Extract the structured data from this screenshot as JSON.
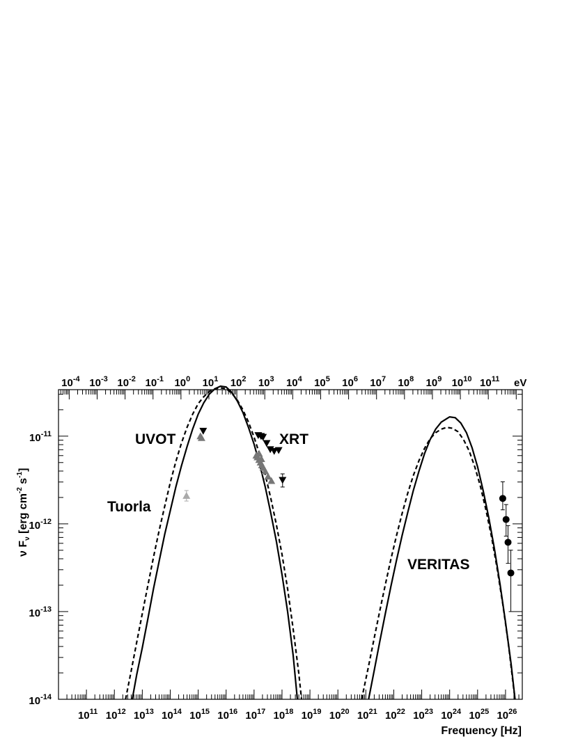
{
  "chart_data": {
    "type": "scatter",
    "xlabel": "Frequency [Hz]",
    "ylabel_parts": {
      "pre": "ν F",
      "sub": "ν",
      "mid": " [erg cm",
      "sup1": "-2",
      "mid2": " s",
      "sup2": "-1",
      "post": "]"
    },
    "x_log_range": [
      10.0,
      26.6
    ],
    "y_log_range": [
      -14,
      -10.47
    ],
    "xscale": "log",
    "yscale": "log",
    "x_tick_labels": [
      {
        "base": "10",
        "exp": "11",
        "v": 11
      },
      {
        "base": "10",
        "exp": "12",
        "v": 12
      },
      {
        "base": "10",
        "exp": "13",
        "v": 13
      },
      {
        "base": "10",
        "exp": "14",
        "v": 14
      },
      {
        "base": "10",
        "exp": "15",
        "v": 15
      },
      {
        "base": "10",
        "exp": "16",
        "v": 16
      },
      {
        "base": "10",
        "exp": "17",
        "v": 17
      },
      {
        "base": "10",
        "exp": "18",
        "v": 18
      },
      {
        "base": "10",
        "exp": "19",
        "v": 19
      },
      {
        "base": "10",
        "exp": "20",
        "v": 20
      },
      {
        "base": "10",
        "exp": "21",
        "v": 21
      },
      {
        "base": "10",
        "exp": "22",
        "v": 22
      },
      {
        "base": "10",
        "exp": "23",
        "v": 23
      },
      {
        "base": "10",
        "exp": "24",
        "v": 24
      },
      {
        "base": "10",
        "exp": "25",
        "v": 25
      },
      {
        "base": "10",
        "exp": "26",
        "v": 26
      }
    ],
    "y_tick_labels": [
      {
        "base": "10",
        "exp": "-14",
        "v": -14
      },
      {
        "base": "10",
        "exp": "-13",
        "v": -13
      },
      {
        "base": "10",
        "exp": "-12",
        "v": -12
      },
      {
        "base": "10",
        "exp": "-11",
        "v": -11
      }
    ],
    "top_axis": {
      "unit": "eV",
      "labels": [
        {
          "base": "10",
          "exp": "-4",
          "v": -4
        },
        {
          "base": "10",
          "exp": "-3",
          "v": -3
        },
        {
          "base": "10",
          "exp": "-2",
          "v": -2
        },
        {
          "base": "10",
          "exp": "-1",
          "v": -1
        },
        {
          "base": "10",
          "exp": "0",
          "v": 0
        },
        {
          "base": "10",
          "exp": "1",
          "v": 1
        },
        {
          "base": "10",
          "exp": "2",
          "v": 2
        },
        {
          "base": "10",
          "exp": "3",
          "v": 3
        },
        {
          "base": "10",
          "exp": "4",
          "v": 4
        },
        {
          "base": "10",
          "exp": "5",
          "v": 5
        },
        {
          "base": "10",
          "exp": "6",
          "v": 6
        },
        {
          "base": "10",
          "exp": "7",
          "v": 7
        },
        {
          "base": "10",
          "exp": "8",
          "v": 8
        },
        {
          "base": "10",
          "exp": "9",
          "v": 9
        },
        {
          "base": "10",
          "exp": "10",
          "v": 10
        },
        {
          "base": "10",
          "exp": "11",
          "v": 11
        }
      ]
    },
    "annotations": [
      "UVOT",
      "XRT",
      "Tuorla",
      "VERITAS"
    ],
    "series": [
      {
        "marker": "triangle-up",
        "color": "#777777",
        "points": [
          {
            "logx": 15.12,
            "logy": -11.02
          },
          {
            "logx": 15.08,
            "logy": -11.0
          },
          {
            "logx": 17.08,
            "logy": -11.22
          },
          {
            "logx": 17.12,
            "logy": -11.24
          },
          {
            "logx": 17.18,
            "logy": -11.27
          },
          {
            "logx": 17.23,
            "logy": -11.3
          },
          {
            "logx": 17.28,
            "logy": -11.33
          },
          {
            "logx": 17.33,
            "logy": -11.36
          },
          {
            "logx": 17.4,
            "logy": -11.4
          },
          {
            "logx": 17.5,
            "logy": -11.46
          },
          {
            "logx": 17.62,
            "logy": -11.51
          },
          {
            "logx": 17.18,
            "logy": -11.2
          },
          {
            "logx": 17.26,
            "logy": -11.26
          }
        ]
      },
      {
        "marker": "triangle-up",
        "color": "#aaaaaa",
        "points": [
          {
            "logx": 14.58,
            "logy": -11.68,
            "err_lo": -11.74,
            "err_hi": -11.62
          }
        ]
      },
      {
        "marker": "triangle-down",
        "color": "#000000",
        "points": [
          {
            "logx": 15.18,
            "logy": -10.94
          },
          {
            "logx": 17.15,
            "logy": -10.99
          },
          {
            "logx": 17.25,
            "logy": -11.0
          },
          {
            "logx": 17.32,
            "logy": -11.01
          },
          {
            "logx": 17.45,
            "logy": -11.08
          },
          {
            "logx": 17.58,
            "logy": -11.15
          },
          {
            "logx": 17.72,
            "logy": -11.17
          },
          {
            "logx": 17.88,
            "logy": -11.16
          },
          {
            "logx": 18.02,
            "logy": -11.5,
            "err_lo": -11.58,
            "err_hi": -11.43
          }
        ]
      },
      {
        "marker": "circle",
        "color": "#000000",
        "points": [
          {
            "logx": 25.9,
            "logy": -11.71,
            "err_lo": -11.84,
            "err_hi": -11.52
          },
          {
            "logx": 26.02,
            "logy": -11.95,
            "err_lo": -12.14,
            "err_hi": -11.78
          },
          {
            "logx": 26.09,
            "logy": -12.21,
            "err_lo": -12.45,
            "err_hi": -12.02
          },
          {
            "logx": 26.19,
            "logy": -12.56,
            "err_lo": -13.0,
            "err_hi": -12.3
          }
        ]
      }
    ],
    "curves": [
      {
        "style": "solid",
        "points": [
          [
            12.64,
            -14.0
          ],
          [
            12.8,
            -13.72
          ],
          [
            13.0,
            -13.41
          ],
          [
            13.2,
            -13.08
          ],
          [
            13.4,
            -12.74
          ],
          [
            13.6,
            -12.43
          ],
          [
            13.8,
            -12.12
          ],
          [
            14.0,
            -11.85
          ],
          [
            14.2,
            -11.58
          ],
          [
            14.4,
            -11.34
          ],
          [
            14.6,
            -11.12
          ],
          [
            14.8,
            -10.92
          ],
          [
            15.0,
            -10.75
          ],
          [
            15.2,
            -10.62
          ],
          [
            15.4,
            -10.52
          ],
          [
            15.6,
            -10.46
          ],
          [
            15.8,
            -10.43
          ],
          [
            16.0,
            -10.44
          ],
          [
            16.2,
            -10.5
          ],
          [
            16.4,
            -10.6
          ],
          [
            16.6,
            -10.73
          ],
          [
            16.8,
            -10.9
          ],
          [
            17.0,
            -11.09
          ],
          [
            17.2,
            -11.32
          ],
          [
            17.4,
            -11.58
          ],
          [
            17.6,
            -11.88
          ],
          [
            17.8,
            -12.2
          ],
          [
            18.0,
            -12.58
          ],
          [
            18.2,
            -13.0
          ],
          [
            18.4,
            -13.5
          ],
          [
            18.55,
            -14.0
          ]
        ]
      },
      {
        "style": "dashed",
        "points": [
          [
            12.4,
            -14.0
          ],
          [
            12.6,
            -13.68
          ],
          [
            12.8,
            -13.35
          ],
          [
            13.0,
            -13.02
          ],
          [
            13.2,
            -12.7
          ],
          [
            13.4,
            -12.38
          ],
          [
            13.6,
            -12.08
          ],
          [
            13.8,
            -11.8
          ],
          [
            14.0,
            -11.53
          ],
          [
            14.2,
            -11.29
          ],
          [
            14.4,
            -11.08
          ],
          [
            14.6,
            -10.9
          ],
          [
            14.8,
            -10.75
          ],
          [
            15.0,
            -10.63
          ],
          [
            15.2,
            -10.55
          ],
          [
            15.4,
            -10.49
          ],
          [
            15.6,
            -10.46
          ],
          [
            15.8,
            -10.45
          ],
          [
            16.0,
            -10.46
          ],
          [
            16.2,
            -10.51
          ],
          [
            16.4,
            -10.59
          ],
          [
            16.6,
            -10.7
          ],
          [
            16.8,
            -10.84
          ],
          [
            17.0,
            -11.01
          ],
          [
            17.2,
            -11.21
          ],
          [
            17.4,
            -11.44
          ],
          [
            17.6,
            -11.71
          ],
          [
            17.8,
            -12.01
          ],
          [
            18.0,
            -12.35
          ],
          [
            18.2,
            -12.74
          ],
          [
            18.4,
            -13.2
          ],
          [
            18.6,
            -13.7
          ],
          [
            18.7,
            -14.0
          ]
        ]
      },
      {
        "style": "solid",
        "points": [
          [
            21.1,
            -14.0
          ],
          [
            21.3,
            -13.67
          ],
          [
            21.5,
            -13.34
          ],
          [
            21.7,
            -13.02
          ],
          [
            21.9,
            -12.71
          ],
          [
            22.1,
            -12.41
          ],
          [
            22.3,
            -12.13
          ],
          [
            22.5,
            -11.87
          ],
          [
            22.7,
            -11.62
          ],
          [
            22.9,
            -11.4
          ],
          [
            23.1,
            -11.2
          ],
          [
            23.3,
            -11.04
          ],
          [
            23.5,
            -10.92
          ],
          [
            23.7,
            -10.84
          ],
          [
            23.9,
            -10.8
          ],
          [
            24.0,
            -10.78
          ],
          [
            24.2,
            -10.79
          ],
          [
            24.4,
            -10.85
          ],
          [
            24.6,
            -10.96
          ],
          [
            24.8,
            -11.13
          ],
          [
            25.0,
            -11.35
          ],
          [
            25.2,
            -11.62
          ],
          [
            25.4,
            -11.93
          ],
          [
            25.6,
            -12.28
          ],
          [
            25.8,
            -12.68
          ],
          [
            26.0,
            -13.12
          ],
          [
            26.2,
            -13.6
          ],
          [
            26.34,
            -14.0
          ]
        ]
      },
      {
        "style": "dashed",
        "points": [
          [
            20.85,
            -14.0
          ],
          [
            21.1,
            -13.62
          ],
          [
            21.3,
            -13.3
          ],
          [
            21.5,
            -12.99
          ],
          [
            21.7,
            -12.69
          ],
          [
            21.9,
            -12.4
          ],
          [
            22.1,
            -12.13
          ],
          [
            22.3,
            -11.88
          ],
          [
            22.5,
            -11.65
          ],
          [
            22.7,
            -11.45
          ],
          [
            22.9,
            -11.28
          ],
          [
            23.1,
            -11.14
          ],
          [
            23.3,
            -11.03
          ],
          [
            23.5,
            -10.96
          ],
          [
            23.7,
            -10.92
          ],
          [
            23.9,
            -10.9
          ],
          [
            24.1,
            -10.91
          ],
          [
            24.3,
            -10.95
          ],
          [
            24.5,
            -11.04
          ],
          [
            24.7,
            -11.17
          ],
          [
            24.9,
            -11.35
          ],
          [
            25.1,
            -11.57
          ],
          [
            25.3,
            -11.84
          ],
          [
            25.5,
            -12.15
          ],
          [
            25.7,
            -12.51
          ],
          [
            25.9,
            -12.91
          ],
          [
            26.1,
            -13.36
          ],
          [
            26.3,
            -13.9
          ],
          [
            26.34,
            -14.0
          ]
        ]
      }
    ]
  }
}
